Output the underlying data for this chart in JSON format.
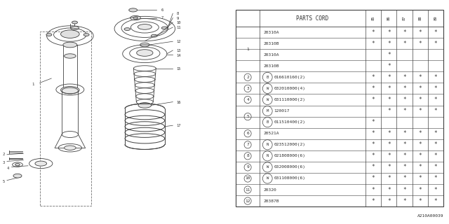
{
  "bg_color": "#ffffff",
  "table_header": "PARTS CORD",
  "col_headers": [
    "85",
    "86",
    "87",
    "88",
    "89"
  ],
  "rows": [
    {
      "num": "1",
      "circle": false,
      "parts": [
        {
          "part": "20310A",
          "marks": [
            1,
            1,
            1,
            1,
            1
          ]
        },
        {
          "part": "20310B",
          "marks": [
            1,
            1,
            1,
            1,
            1
          ]
        },
        {
          "part": "20310A",
          "marks": [
            0,
            1,
            0,
            0,
            0
          ]
        },
        {
          "part": "20310B",
          "marks": [
            0,
            1,
            0,
            0,
            0
          ]
        }
      ]
    },
    {
      "num": "2",
      "circle": true,
      "parts": [
        {
          "part": "B016610160(2)",
          "marks": [
            1,
            1,
            1,
            1,
            1
          ]
        }
      ]
    },
    {
      "num": "3",
      "circle": true,
      "parts": [
        {
          "part": "W032010000(4)",
          "marks": [
            1,
            1,
            1,
            1,
            1
          ]
        }
      ]
    },
    {
      "num": "4",
      "circle": true,
      "parts": [
        {
          "part": "W031110000(2)",
          "marks": [
            1,
            1,
            1,
            1,
            1
          ]
        }
      ]
    },
    {
      "num": "5",
      "circle": true,
      "parts": [
        {
          "part": "M120017",
          "marks": [
            0,
            1,
            1,
            1,
            1
          ]
        },
        {
          "part": "B011510400(2)",
          "marks": [
            1,
            0,
            0,
            0,
            0
          ]
        }
      ]
    },
    {
      "num": "6",
      "circle": true,
      "parts": [
        {
          "part": "20521A",
          "marks": [
            1,
            1,
            1,
            1,
            1
          ]
        }
      ]
    },
    {
      "num": "7",
      "circle": true,
      "parts": [
        {
          "part": "N023512000(2)",
          "marks": [
            1,
            1,
            1,
            1,
            1
          ]
        }
      ]
    },
    {
      "num": "8",
      "circle": true,
      "parts": [
        {
          "part": "N021808000(6)",
          "marks": [
            1,
            1,
            1,
            1,
            1
          ]
        }
      ]
    },
    {
      "num": "9",
      "circle": true,
      "parts": [
        {
          "part": "W032008000(6)",
          "marks": [
            1,
            1,
            1,
            1,
            1
          ]
        }
      ]
    },
    {
      "num": "10",
      "circle": true,
      "parts": [
        {
          "part": "W031108000(6)",
          "marks": [
            1,
            1,
            1,
            1,
            1
          ]
        }
      ]
    },
    {
      "num": "11",
      "circle": true,
      "parts": [
        {
          "part": "20320",
          "marks": [
            1,
            1,
            1,
            1,
            1
          ]
        }
      ]
    },
    {
      "num": "12",
      "circle": true,
      "parts": [
        {
          "part": "20387B",
          "marks": [
            1,
            1,
            1,
            1,
            1
          ]
        }
      ]
    }
  ],
  "footnote": "A210A00039",
  "line_color": "#505050",
  "text_color": "#303030",
  "draw_color": "#404040"
}
